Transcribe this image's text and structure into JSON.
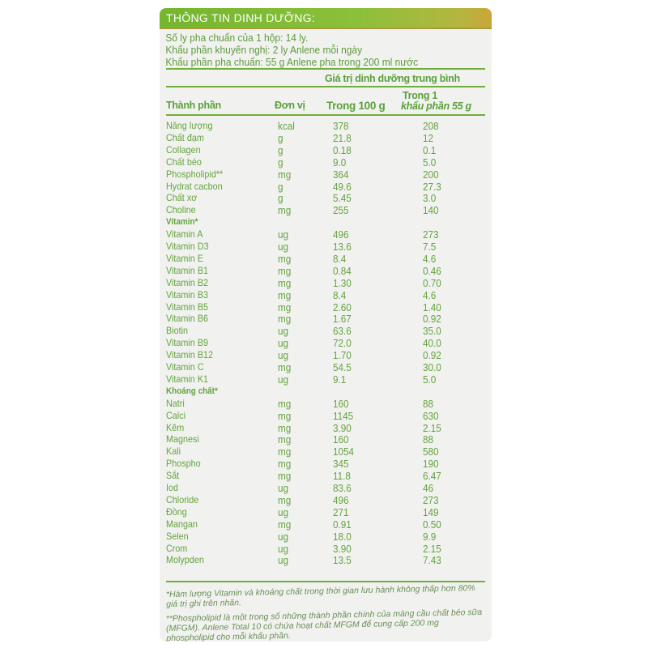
{
  "header": {
    "title": "THÔNG TIN DINH DƯỠNG:"
  },
  "intro": [
    "Số ly pha chuẩn của 1 hộp: 14 ly.",
    "Khẩu phần khuyến nghị: 2 ly Anlene mỗi ngày",
    "Khẩu phần pha chuẩn: 55 g Anlene pha trong 200 ml nước"
  ],
  "table": {
    "group_header": "Giá trị dinh dưỡng trung bình",
    "columns": [
      "Thành phần",
      "Đơn vị",
      "Trong 100 g",
      "Trong 1",
      "khẩu phần 55 g"
    ],
    "rows": [
      [
        "Năng lượng",
        "kcal",
        "378",
        "208"
      ],
      [
        "Chất đạm",
        "g",
        "21.8",
        "12"
      ],
      [
        "Collagen",
        "g",
        "0.18",
        "0.1"
      ],
      [
        "Chất béo",
        "g",
        "9.0",
        "5.0"
      ],
      [
        "Phospholipid**",
        "mg",
        "364",
        "200"
      ],
      [
        "Hydrat cacbon",
        "g",
        "49.6",
        "27.3"
      ],
      [
        "Chất xơ",
        "g",
        "5.45",
        "3.0"
      ],
      [
        "Choline",
        "mg",
        "255",
        "140"
      ],
      [
        "Vitamin*"
      ],
      [
        "Vitamin A",
        "ug",
        "496",
        "273"
      ],
      [
        "Vitamin D3",
        "ug",
        "13.6",
        "7.5"
      ],
      [
        "Vitamin E",
        "mg",
        "8.4",
        "4.6"
      ],
      [
        "Vitamin B1",
        "mg",
        "0.84",
        "0.46"
      ],
      [
        "Vitamin B2",
        "mg",
        "1.30",
        "0.70"
      ],
      [
        "Vitamin B3",
        "mg",
        "8.4",
        "4.6"
      ],
      [
        "Vitamin B5",
        "mg",
        "2.60",
        "1.40"
      ],
      [
        "Vitamin B6",
        "mg",
        "1.67",
        "0.92"
      ],
      [
        "Biotin",
        "ug",
        "63.6",
        "35.0"
      ],
      [
        "Vitamin B9",
        "ug",
        "72.0",
        "40.0"
      ],
      [
        "Vitamin B12",
        "ug",
        "1.70",
        "0.92"
      ],
      [
        "Vitamin C",
        "mg",
        "54.5",
        "30.0"
      ],
      [
        "Vitamin K1",
        "ug",
        "9.1",
        "5.0"
      ],
      [
        "Khoáng chất*"
      ],
      [
        "Natri",
        "mg",
        "160",
        "88"
      ],
      [
        "Calci",
        "mg",
        "1145",
        "630"
      ],
      [
        "Kẽm",
        "mg",
        "3.90",
        "2.15"
      ],
      [
        "Magnesi",
        "mg",
        "160",
        "88"
      ],
      [
        "Kali",
        "mg",
        "1054",
        "580"
      ],
      [
        "Phospho",
        "mg",
        "345",
        "190"
      ],
      [
        "Sắt",
        "mg",
        "11.8",
        "6.47"
      ],
      [
        "Iod",
        "ug",
        "83.6",
        "46"
      ],
      [
        "Chloride",
        "mg",
        "496",
        "273"
      ],
      [
        "Đồng",
        "ug",
        "271",
        "149"
      ],
      [
        "Mangan",
        "mg",
        "0.91",
        "0.50"
      ],
      [
        "Selen",
        "ug",
        "18.0",
        "9.9"
      ],
      [
        "Crom",
        "ug",
        "3.90",
        "2.15"
      ],
      [
        "Molypden",
        "ug",
        "13.5",
        "7.43"
      ]
    ]
  },
  "notes": [
    "*Hàm lượng Vitamin và khoáng chất trong thời gian lưu hành không thấp hơn 80% giá trị ghi trên nhãn.",
    "**Phospholipid là một trong số những thành phần chính của màng cầu chất béo sữa (MFGM). Anlene Total 10 có chứa hoạt chất MFGM để cung cấp 200 mg phospholipid cho mỗi khẩu phần."
  ]
}
